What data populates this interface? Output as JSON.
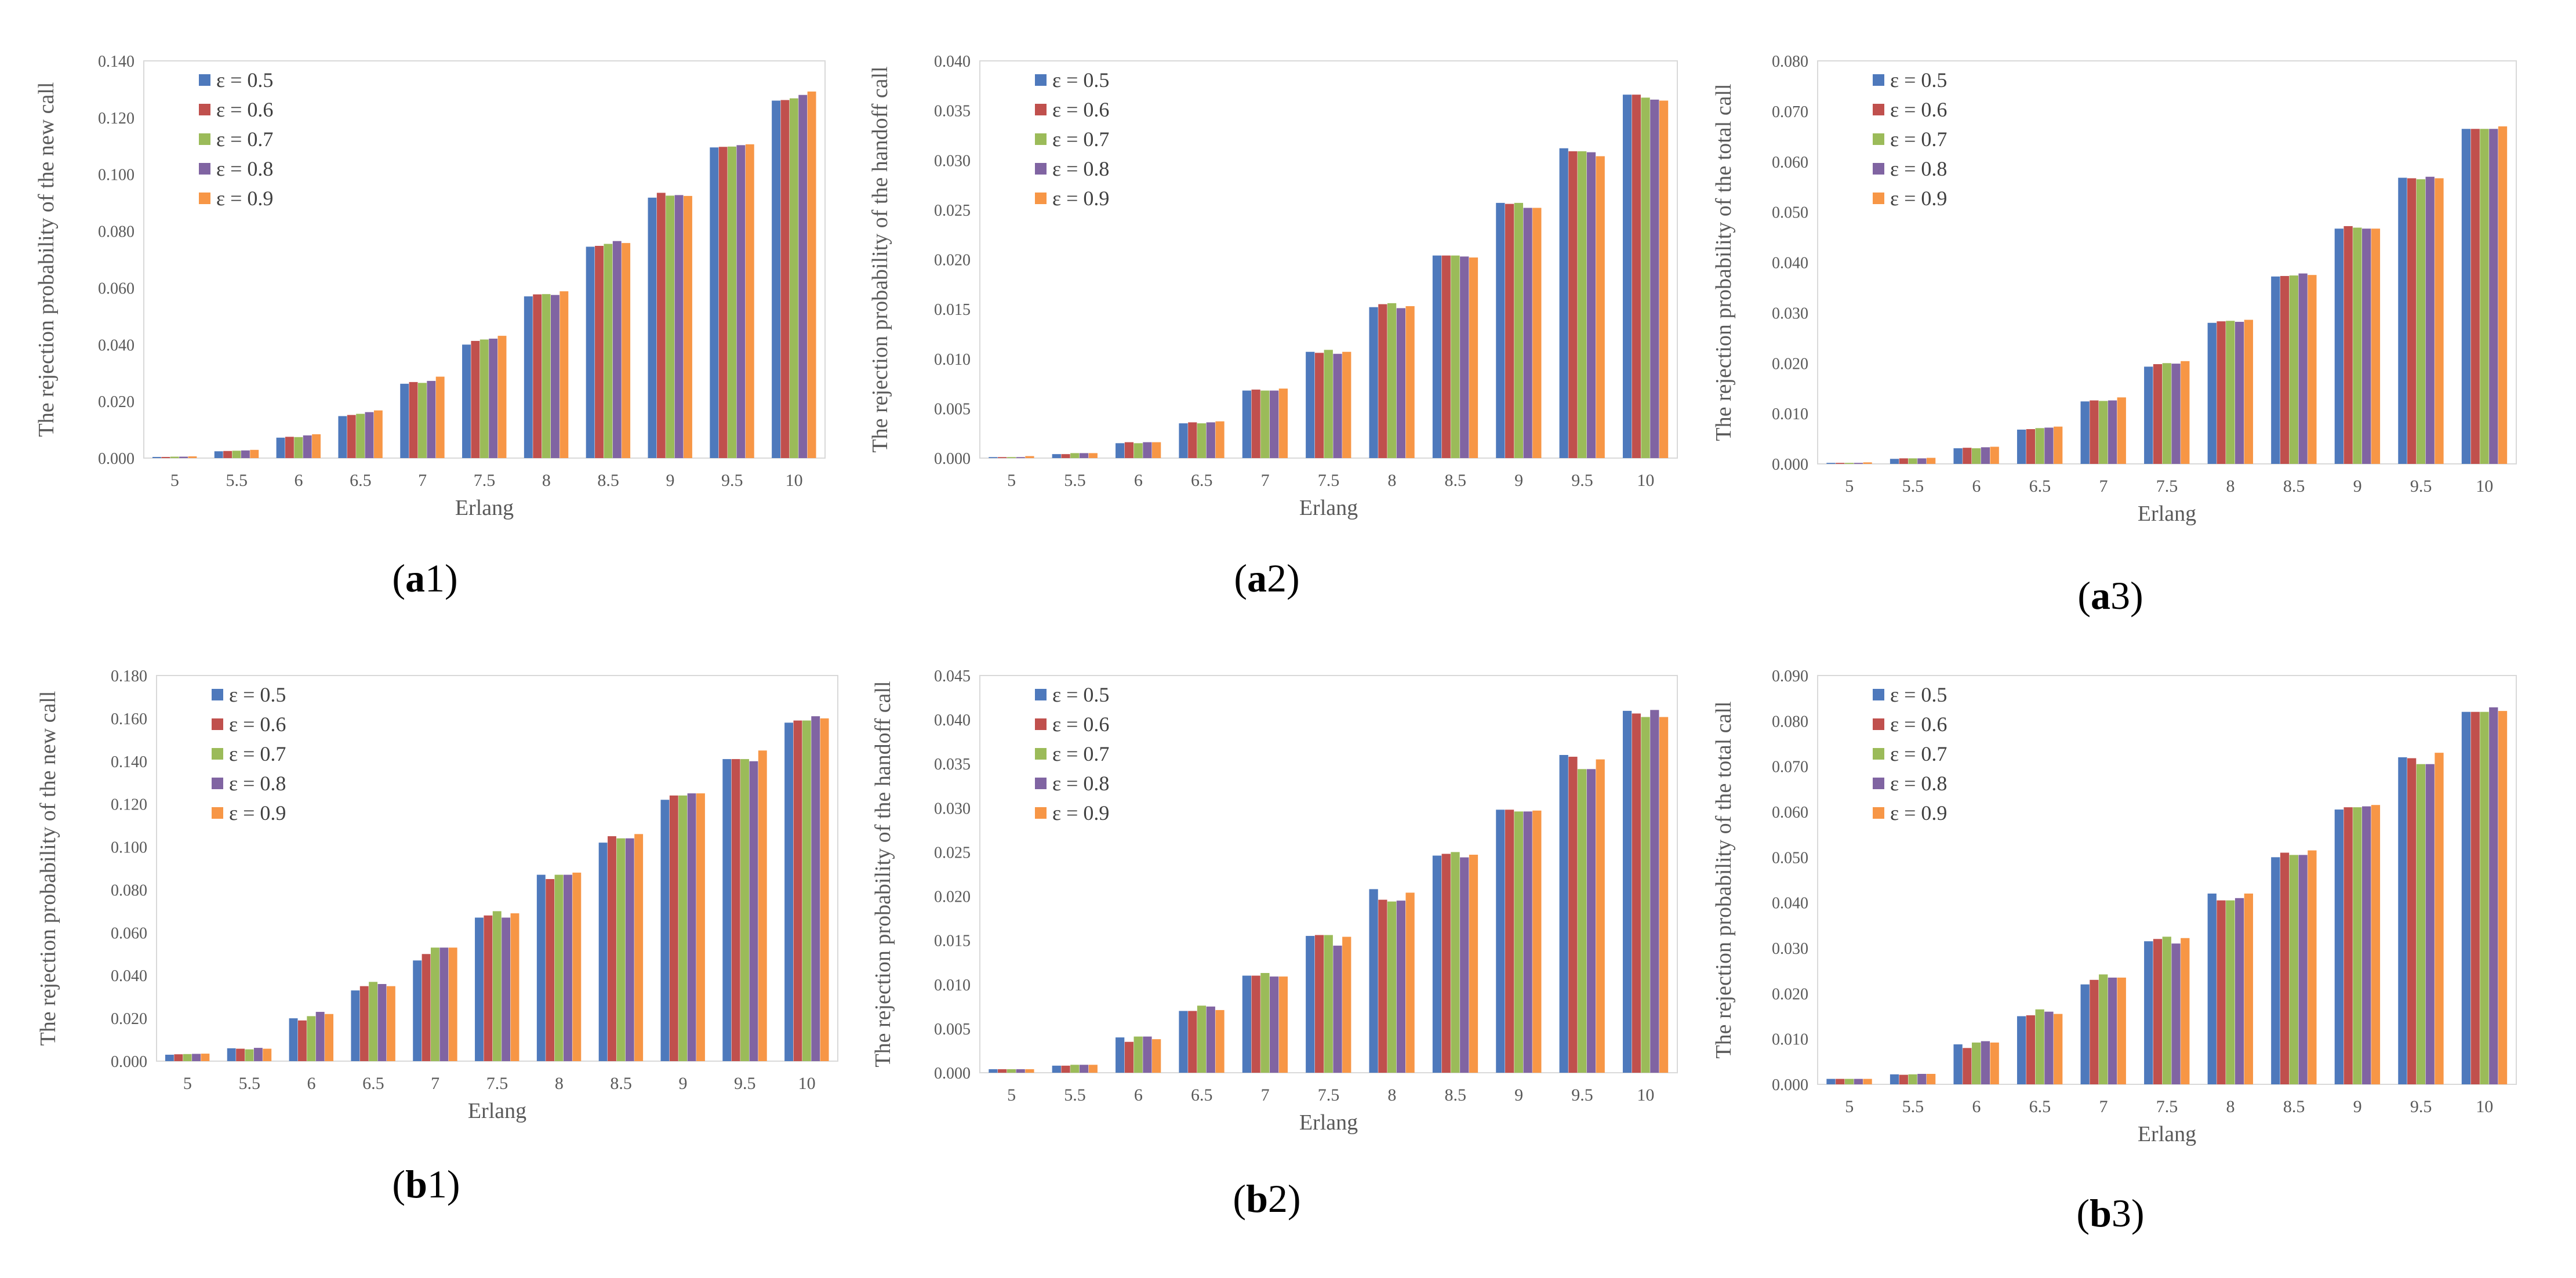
{
  "colors": [
    "#4E79BC",
    "#C0504D",
    "#9BBB59",
    "#8064A2",
    "#F79646"
  ],
  "chart_data": [
    {
      "id": "a1",
      "panel": "a",
      "num": "1",
      "type": "bar",
      "ylabel": "The rejection probability of the new call",
      "xlabel": "Erlang",
      "categories": [
        "5",
        "5.5",
        "6",
        "6.5",
        "7",
        "7.5",
        "8",
        "8.5",
        "9",
        "9.5",
        "10"
      ],
      "ylim": [
        0,
        0.14
      ],
      "yticks": [
        "0.000",
        "0.020",
        "0.040",
        "0.060",
        "0.080",
        "0.100",
        "0.120",
        "0.140"
      ],
      "legend_position": "top-left",
      "series": [
        {
          "name": "ε = 0.5",
          "values": [
            0.0004,
            0.0024,
            0.0072,
            0.0148,
            0.0262,
            0.04,
            0.057,
            0.0745,
            0.0918,
            0.1095,
            0.126
          ]
        },
        {
          "name": "ε = 0.6",
          "values": [
            0.0004,
            0.0025,
            0.0075,
            0.0152,
            0.0268,
            0.0413,
            0.0577,
            0.0748,
            0.0935,
            0.1097,
            0.1262
          ]
        },
        {
          "name": "ε = 0.7",
          "values": [
            0.0005,
            0.0026,
            0.0074,
            0.0156,
            0.0265,
            0.0418,
            0.0578,
            0.0755,
            0.0925,
            0.1098,
            0.1268
          ]
        },
        {
          "name": "ε = 0.8",
          "values": [
            0.0005,
            0.0027,
            0.008,
            0.0162,
            0.0272,
            0.0421,
            0.0575,
            0.0765,
            0.0927,
            0.1103,
            0.128
          ]
        },
        {
          "name": "ε = 0.9",
          "values": [
            0.0006,
            0.0029,
            0.0084,
            0.0168,
            0.0287,
            0.0431,
            0.0588,
            0.0758,
            0.0924,
            0.1106,
            0.1292
          ]
        }
      ]
    },
    {
      "id": "a2",
      "panel": "a",
      "num": "2",
      "type": "bar",
      "ylabel": "The rejection probability of the handoff call",
      "xlabel": "Erlang",
      "categories": [
        "5",
        "5.5",
        "6",
        "6.5",
        "7",
        "7.5",
        "8",
        "8.5",
        "9",
        "9.5",
        "10"
      ],
      "ylim": [
        0,
        0.04
      ],
      "yticks": [
        "0.000",
        "0.005",
        "0.010",
        "0.015",
        "0.020",
        "0.025",
        "0.030",
        "0.035",
        "0.040"
      ],
      "legend_position": "top-left",
      "series": [
        {
          "name": "ε = 0.5",
          "values": [
            0.0001,
            0.0004,
            0.0015,
            0.0035,
            0.0068,
            0.0107,
            0.0152,
            0.0204,
            0.0257,
            0.0312,
            0.0366
          ]
        },
        {
          "name": "ε = 0.6",
          "values": [
            0.0001,
            0.0004,
            0.0016,
            0.0036,
            0.0069,
            0.0106,
            0.0155,
            0.0204,
            0.0256,
            0.0309,
            0.0366
          ]
        },
        {
          "name": "ε = 0.7",
          "values": [
            0.0001,
            0.0005,
            0.0015,
            0.0035,
            0.0068,
            0.0109,
            0.0156,
            0.0204,
            0.0257,
            0.0309,
            0.0363
          ]
        },
        {
          "name": "ε = 0.8",
          "values": [
            0.0001,
            0.0005,
            0.0016,
            0.0036,
            0.0068,
            0.0105,
            0.0151,
            0.0203,
            0.0252,
            0.0308,
            0.0361
          ]
        },
        {
          "name": "ε = 0.9",
          "values": [
            0.0002,
            0.0005,
            0.0016,
            0.0037,
            0.007,
            0.0107,
            0.0153,
            0.0202,
            0.0252,
            0.0304,
            0.036
          ]
        }
      ]
    },
    {
      "id": "a3",
      "panel": "a",
      "num": "3",
      "type": "bar",
      "ylabel": "The rejection probability of the total call",
      "xlabel": "Erlang",
      "categories": [
        "5",
        "5.5",
        "6",
        "6.5",
        "7",
        "7.5",
        "8",
        "8.5",
        "9",
        "9.5",
        "10"
      ],
      "ylim": [
        0,
        0.08
      ],
      "yticks": [
        "0.000",
        "0.010",
        "0.020",
        "0.030",
        "0.040",
        "0.050",
        "0.060",
        "0.070",
        "0.080"
      ],
      "legend_position": "top-left",
      "series": [
        {
          "name": "ε = 0.5",
          "values": [
            0.0002,
            0.001,
            0.0031,
            0.0068,
            0.0124,
            0.0193,
            0.028,
            0.0372,
            0.0467,
            0.0568,
            0.0665
          ]
        },
        {
          "name": "ε = 0.6",
          "values": [
            0.0002,
            0.0011,
            0.0032,
            0.0069,
            0.0126,
            0.0198,
            0.0283,
            0.0373,
            0.0472,
            0.0567,
            0.0665
          ]
        },
        {
          "name": "ε = 0.7",
          "values": [
            0.0002,
            0.0011,
            0.0031,
            0.0071,
            0.0125,
            0.02,
            0.0284,
            0.0374,
            0.0469,
            0.0565,
            0.0665
          ]
        },
        {
          "name": "ε = 0.8",
          "values": [
            0.0002,
            0.0011,
            0.0033,
            0.0072,
            0.0126,
            0.0199,
            0.0282,
            0.0378,
            0.0467,
            0.057,
            0.0665
          ]
        },
        {
          "name": "ε = 0.9",
          "values": [
            0.0003,
            0.0012,
            0.0034,
            0.0074,
            0.0132,
            0.0204,
            0.0286,
            0.0375,
            0.0467,
            0.0567,
            0.067
          ]
        }
      ]
    },
    {
      "id": "b1",
      "panel": "b",
      "num": "1",
      "type": "bar",
      "ylabel": "The rejection probability of the new call",
      "xlabel": "Erlang",
      "categories": [
        "5",
        "5.5",
        "6",
        "6.5",
        "7",
        "7.5",
        "8",
        "8.5",
        "9",
        "9.5",
        "10"
      ],
      "ylim": [
        0,
        0.18
      ],
      "yticks": [
        "0.000",
        "0.020",
        "0.040",
        "0.060",
        "0.080",
        "0.100",
        "0.120",
        "0.140",
        "0.160",
        "0.180"
      ],
      "legend_position": "top-left",
      "series": [
        {
          "name": "ε = 0.5",
          "values": [
            0.003,
            0.006,
            0.02,
            0.033,
            0.047,
            0.067,
            0.087,
            0.102,
            0.122,
            0.141,
            0.158
          ]
        },
        {
          "name": "ε = 0.6",
          "values": [
            0.0032,
            0.0058,
            0.019,
            0.035,
            0.05,
            0.068,
            0.085,
            0.105,
            0.124,
            0.141,
            0.159
          ]
        },
        {
          "name": "ε = 0.7",
          "values": [
            0.0033,
            0.0055,
            0.021,
            0.037,
            0.053,
            0.07,
            0.087,
            0.104,
            0.124,
            0.141,
            0.159
          ]
        },
        {
          "name": "ε = 0.8",
          "values": [
            0.0034,
            0.0062,
            0.023,
            0.036,
            0.053,
            0.067,
            0.087,
            0.104,
            0.125,
            0.14,
            0.161
          ]
        },
        {
          "name": "ε = 0.9",
          "values": [
            0.0035,
            0.0058,
            0.022,
            0.035,
            0.053,
            0.069,
            0.088,
            0.106,
            0.125,
            0.145,
            0.16
          ]
        }
      ]
    },
    {
      "id": "b2",
      "panel": "b",
      "num": "2",
      "type": "bar",
      "ylabel": "The rejection probability of the handoff call",
      "xlabel": "Erlang",
      "categories": [
        "5",
        "5.5",
        "6",
        "6.5",
        "7",
        "7.5",
        "8",
        "8.5",
        "9",
        "9.5",
        "10"
      ],
      "ylim": [
        0,
        0.045
      ],
      "yticks": [
        "0.000",
        "0.005",
        "0.010",
        "0.015",
        "0.020",
        "0.025",
        "0.030",
        "0.035",
        "0.040",
        "0.045"
      ],
      "legend_position": "top-left",
      "series": [
        {
          "name": "ε = 0.5",
          "values": [
            0.0004,
            0.0008,
            0.004,
            0.007,
            0.011,
            0.0155,
            0.0208,
            0.0246,
            0.0298,
            0.036,
            0.041
          ]
        },
        {
          "name": "ε = 0.6",
          "values": [
            0.0004,
            0.0008,
            0.0035,
            0.007,
            0.011,
            0.0156,
            0.0196,
            0.0248,
            0.0298,
            0.0358,
            0.0407
          ]
        },
        {
          "name": "ε = 0.7",
          "values": [
            0.0004,
            0.0009,
            0.0041,
            0.0076,
            0.0113,
            0.0156,
            0.0194,
            0.025,
            0.0296,
            0.0344,
            0.0403
          ]
        },
        {
          "name": "ε = 0.8",
          "values": [
            0.0004,
            0.0009,
            0.0041,
            0.0075,
            0.0109,
            0.0144,
            0.0195,
            0.0244,
            0.0296,
            0.0344,
            0.0411
          ]
        },
        {
          "name": "ε = 0.9",
          "values": [
            0.0004,
            0.0009,
            0.0038,
            0.0071,
            0.0109,
            0.0154,
            0.0204,
            0.0247,
            0.0297,
            0.0355,
            0.0403
          ]
        }
      ]
    },
    {
      "id": "b3",
      "panel": "b",
      "num": "3",
      "type": "bar",
      "ylabel": "The rejection probability of the total call",
      "xlabel": "Erlang",
      "categories": [
        "5",
        "5.5",
        "6",
        "6.5",
        "7",
        "7.5",
        "8",
        "8.5",
        "9",
        "9.5",
        "10"
      ],
      "ylim": [
        0,
        0.09
      ],
      "yticks": [
        "0.000",
        "0.010",
        "0.020",
        "0.030",
        "0.040",
        "0.050",
        "0.060",
        "0.070",
        "0.080",
        "0.090"
      ],
      "legend_position": "top-left",
      "series": [
        {
          "name": "ε = 0.5",
          "values": [
            0.0012,
            0.0022,
            0.0088,
            0.015,
            0.022,
            0.0315,
            0.042,
            0.05,
            0.0605,
            0.072,
            0.082
          ]
        },
        {
          "name": "ε = 0.6",
          "values": [
            0.0012,
            0.0021,
            0.008,
            0.0152,
            0.023,
            0.032,
            0.0405,
            0.051,
            0.061,
            0.0718,
            0.082
          ]
        },
        {
          "name": "ε = 0.7",
          "values": [
            0.0012,
            0.0022,
            0.0092,
            0.0165,
            0.0242,
            0.0325,
            0.0405,
            0.0505,
            0.061,
            0.0705,
            0.082
          ]
        },
        {
          "name": "ε = 0.8",
          "values": [
            0.0012,
            0.0023,
            0.0095,
            0.016,
            0.0235,
            0.031,
            0.041,
            0.0505,
            0.0612,
            0.0705,
            0.083
          ]
        },
        {
          "name": "ε = 0.9",
          "values": [
            0.0012,
            0.0023,
            0.0092,
            0.0155,
            0.0235,
            0.0322,
            0.042,
            0.0515,
            0.0615,
            0.073,
            0.0822
          ]
        }
      ]
    }
  ]
}
